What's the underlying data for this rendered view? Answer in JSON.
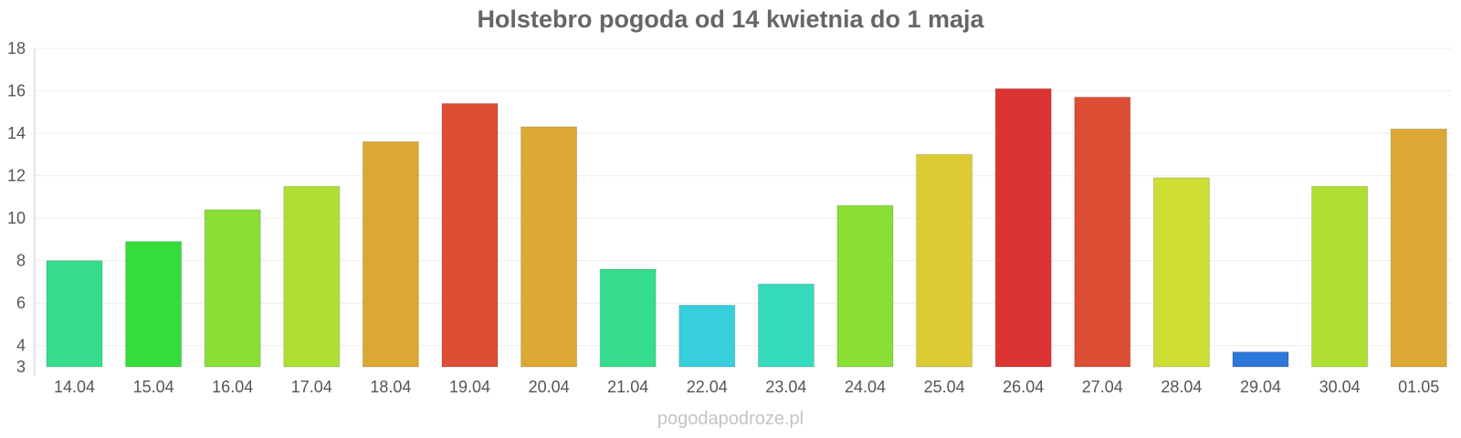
{
  "chart_data": {
    "type": "bar",
    "title": "Holstebro pogoda od 14 kwietnia do 1 maja",
    "xlabel": "",
    "ylabel": "",
    "ylim": [
      3,
      18
    ],
    "yticks": [
      "3",
      "4",
      "6",
      "8",
      "10",
      "12",
      "14",
      "16",
      "18"
    ],
    "grid": true,
    "categories": [
      "14.04",
      "15.04",
      "16.04",
      "17.04",
      "18.04",
      "19.04",
      "20.04",
      "21.04",
      "22.04",
      "23.04",
      "24.04",
      "25.04",
      "26.04",
      "27.04",
      "28.04",
      "29.04",
      "30.04",
      "01.05"
    ],
    "values": [
      8.0,
      8.9,
      10.4,
      11.5,
      13.6,
      15.4,
      14.3,
      7.6,
      5.9,
      6.9,
      10.6,
      13.0,
      16.1,
      15.7,
      11.9,
      3.7,
      11.5,
      14.2
    ],
    "colors": [
      "#36dd8d",
      "#36dd3a",
      "#8ade36",
      "#afdf33",
      "#dca834",
      "#dc4e33",
      "#dca834",
      "#36dd8d",
      "#36cfdb",
      "#36dbbd",
      "#8ade36",
      "#dccb32",
      "#dc3333",
      "#dc4e33",
      "#cddd33",
      "#2e77db",
      "#afdf33",
      "#dca834"
    ]
  },
  "watermark": "pogodapodroze.pl"
}
